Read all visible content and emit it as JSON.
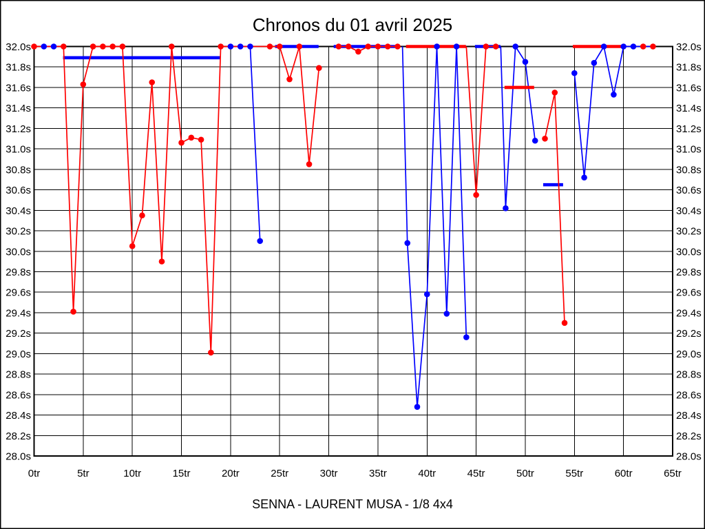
{
  "page": {
    "background": "#ffffff",
    "border_color": "#000000"
  },
  "chart_data": {
    "type": "line",
    "title": "Chronos du 01 avril 2025",
    "subtitle": "SENNA - LAURENT MUSA - 1/8 4x4",
    "grid": true,
    "x_axis": {
      "min": 0,
      "max": 65,
      "tick_step": 5,
      "unit": "tr"
    },
    "y_axis": {
      "min": 28.0,
      "max": 32.0,
      "tick_step": 0.2,
      "unit": "s"
    },
    "x_ticks": [
      "0tr",
      "5tr",
      "10tr",
      "15tr",
      "20tr",
      "25tr",
      "30tr",
      "35tr",
      "40tr",
      "45tr",
      "50tr",
      "55tr",
      "60tr",
      "65tr"
    ],
    "y_ticks": [
      "32.0s",
      "31.8s",
      "31.6s",
      "31.4s",
      "31.2s",
      "31.0s",
      "30.8s",
      "30.6s",
      "30.4s",
      "30.2s",
      "30.0s",
      "29.8s",
      "29.6s",
      "29.4s",
      "29.2s",
      "29.0s",
      "28.8s",
      "28.6s",
      "28.4s",
      "28.2s",
      "28.0s"
    ],
    "series": [
      {
        "id": "blue",
        "name": "driver-blue",
        "color": "#0000ff",
        "runs": [
          {
            "points": [
              [
                1,
                32
              ],
              [
                2,
                32
              ]
            ],
            "marker_laps": [
              1,
              2
            ]
          },
          {
            "points": [
              [
                20,
                32
              ],
              [
                21,
                32
              ],
              [
                22,
                32
              ],
              [
                23,
                30.1
              ]
            ],
            "marker_laps": [
              20,
              21,
              22,
              23
            ]
          },
          {
            "points": [
              [
                37.5,
                32
              ],
              [
                38,
                30.08
              ],
              [
                39,
                28.48
              ],
              [
                40,
                29.58
              ],
              [
                41,
                32
              ],
              [
                42,
                29.39
              ],
              [
                43,
                32
              ],
              [
                44,
                29.16
              ]
            ],
            "marker_laps": [
              38,
              39,
              40,
              41,
              42,
              43,
              44
            ]
          },
          {
            "points": [
              [
                47.5,
                32
              ],
              [
                48,
                30.42
              ],
              [
                49,
                32
              ],
              [
                50,
                31.85
              ],
              [
                51,
                31.08
              ]
            ],
            "marker_laps": [
              48,
              49,
              50,
              51
            ]
          },
          {
            "points": [
              [
                55,
                31.74
              ],
              [
                56,
                30.72
              ],
              [
                57,
                31.84
              ],
              [
                58,
                32
              ],
              [
                59,
                31.53
              ],
              [
                60,
                32
              ],
              [
                61,
                32
              ],
              [
                63,
                32
              ]
            ],
            "marker_laps": [
              55,
              56,
              57,
              58,
              59,
              60,
              61
            ]
          }
        ],
        "flat_segments": [
          {
            "from": 2.95,
            "to": 18.93,
            "value": 31.89
          },
          {
            "from": 24.54,
            "to": 28.96,
            "value": 32.0
          },
          {
            "from": 30.5,
            "to": 36.95,
            "value": 32.0
          },
          {
            "from": 44.88,
            "to": 47.47,
            "value": 32.0
          },
          {
            "from": 51.82,
            "to": 53.85,
            "value": 30.65
          }
        ],
        "isolated_dots": []
      },
      {
        "id": "red",
        "name": "driver-red",
        "color": "#ff0000",
        "runs": [
          {
            "points": [
              [
                0,
                32
              ],
              [
                1,
                32
              ],
              [
                2,
                32
              ],
              [
                3,
                32
              ],
              [
                4,
                29.41
              ],
              [
                5,
                31.63
              ],
              [
                6,
                32
              ],
              [
                7,
                32
              ],
              [
                8,
                32
              ],
              [
                9,
                32
              ],
              [
                10,
                30.05
              ],
              [
                11,
                30.35
              ],
              [
                12,
                31.65
              ],
              [
                13,
                29.9
              ],
              [
                14,
                32
              ],
              [
                15,
                31.06
              ],
              [
                16,
                31.11
              ],
              [
                17,
                31.09
              ],
              [
                18,
                29.01
              ],
              [
                19,
                32
              ],
              [
                20,
                32
              ],
              [
                21,
                32
              ],
              [
                22,
                32
              ],
              [
                23,
                32
              ],
              [
                24,
                32
              ],
              [
                25,
                32
              ],
              [
                26,
                31.68
              ],
              [
                27,
                32
              ],
              [
                28,
                30.85
              ],
              [
                29,
                31.79
              ]
            ],
            "marker_laps": [
              0,
              3,
              4,
              5,
              6,
              7,
              8,
              9,
              10,
              11,
              12,
              13,
              14,
              15,
              16,
              17,
              18,
              19,
              24,
              25,
              26,
              27,
              28,
              29
            ]
          },
          {
            "points": [
              [
                31,
                32
              ],
              [
                32,
                32
              ],
              [
                33,
                31.95
              ],
              [
                34,
                32
              ],
              [
                35,
                32
              ],
              [
                36,
                32
              ],
              [
                37,
                32
              ]
            ],
            "marker_laps": [
              31,
              32,
              33,
              34,
              35,
              36,
              37
            ]
          },
          {
            "points": [
              [
                44,
                32
              ],
              [
                45,
                30.55
              ],
              [
                46,
                32
              ],
              [
                47,
                32
              ]
            ],
            "marker_laps": [
              45,
              46,
              47
            ]
          },
          {
            "points": [
              [
                52,
                31.1
              ],
              [
                53,
                31.55
              ],
              [
                54,
                29.3
              ]
            ],
            "marker_laps": [
              52,
              53,
              54
            ]
          }
        ],
        "flat_segments": [
          {
            "from": 37.86,
            "to": 43.96,
            "value": 32.0
          },
          {
            "from": 47.89,
            "to": 50.9,
            "value": 31.6
          },
          {
            "from": 54.84,
            "to": 60.1,
            "value": 32.0
          }
        ],
        "isolated_dots": [
          [
            62,
            32
          ],
          [
            63,
            32
          ]
        ]
      }
    ],
    "style": {
      "line_width": 1.7,
      "flat_segment_width": 4.6,
      "marker_radius": 4.3,
      "grid_color": "#000000",
      "text_color": "#000000"
    }
  }
}
